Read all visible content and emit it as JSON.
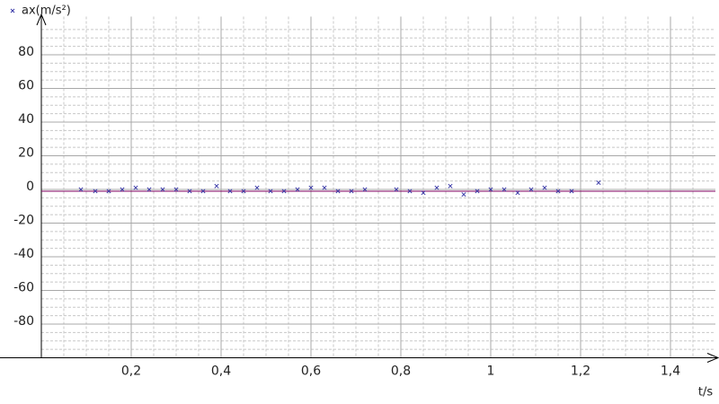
{
  "chart_data": {
    "type": "scatter",
    "x_label": "t/s",
    "legend": "top-left",
    "grid": true,
    "xlim": [
      0,
      1.5
    ],
    "ylim": [
      -100,
      100
    ],
    "xticks": [
      {
        "value": 0.2,
        "label": "0,2"
      },
      {
        "value": 0.4,
        "label": "0,4"
      },
      {
        "value": 0.6,
        "label": "0,6"
      },
      {
        "value": 0.8,
        "label": "0,8"
      },
      1,
      {
        "value": 1.2,
        "label": "1,2"
      },
      {
        "value": 1.4,
        "label": "1,4"
      }
    ],
    "yticks": [
      -80,
      -60,
      -40,
      -20,
      0,
      20,
      40,
      60,
      80
    ],
    "series": [
      {
        "name": "ax(m/s²)",
        "color": "#3a3aa8",
        "marker": "x",
        "x": [
          0.088,
          0.12,
          0.15,
          0.18,
          0.21,
          0.24,
          0.27,
          0.3,
          0.33,
          0.36,
          0.39,
          0.42,
          0.45,
          0.48,
          0.51,
          0.54,
          0.57,
          0.6,
          0.63,
          0.66,
          0.69,
          0.72,
          0.79,
          0.82,
          0.85,
          0.88,
          0.91,
          0.94,
          0.97,
          1.0,
          1.03,
          1.06,
          1.09,
          1.12,
          1.15,
          1.18,
          1.24
        ],
        "values": [
          0,
          -1,
          -1,
          0,
          1,
          0,
          0,
          0,
          -1,
          -1,
          2,
          -1,
          -1,
          1,
          -1,
          -1,
          0,
          1,
          1,
          -1,
          -1,
          0,
          0,
          -1,
          -2,
          1,
          2,
          -3,
          -1,
          0,
          0,
          -2,
          0,
          1,
          -1,
          -1,
          4
        ]
      }
    ]
  }
}
